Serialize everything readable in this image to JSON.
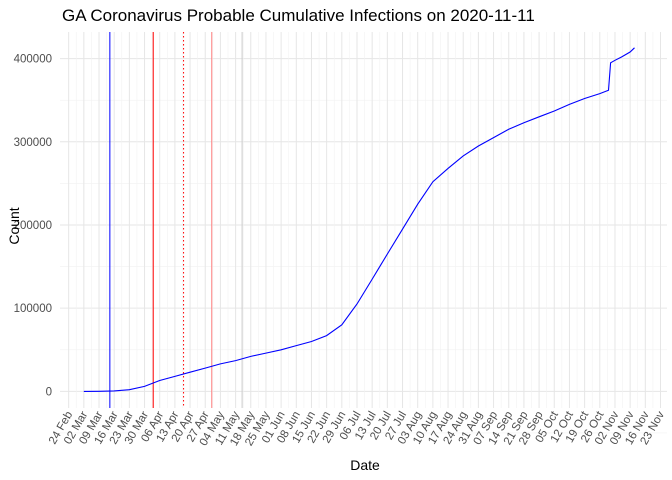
{
  "chart_data": {
    "type": "line",
    "title": "GA Coronavirus Probable Cumulative Infections on 2020-11-11",
    "xlabel": "Date",
    "ylabel": "Count",
    "xlim": [
      "2020-02-20",
      "2020-11-26"
    ],
    "ylim": [
      -20000,
      432000
    ],
    "y_ticks": [
      0,
      100000,
      200000,
      300000,
      400000
    ],
    "y_tick_labels": [
      "0",
      "100000",
      "200000",
      "300000",
      "400000"
    ],
    "x_ticks": [
      "2020-02-24",
      "2020-03-02",
      "2020-03-09",
      "2020-03-16",
      "2020-03-23",
      "2020-03-30",
      "2020-04-06",
      "2020-04-13",
      "2020-04-20",
      "2020-04-27",
      "2020-05-04",
      "2020-05-11",
      "2020-05-18",
      "2020-05-25",
      "2020-06-01",
      "2020-06-08",
      "2020-06-15",
      "2020-06-22",
      "2020-06-29",
      "2020-07-06",
      "2020-07-13",
      "2020-07-20",
      "2020-07-27",
      "2020-08-03",
      "2020-08-10",
      "2020-08-17",
      "2020-08-24",
      "2020-08-31",
      "2020-09-07",
      "2020-09-14",
      "2020-09-21",
      "2020-09-28",
      "2020-10-05",
      "2020-10-12",
      "2020-10-19",
      "2020-10-26",
      "2020-11-02",
      "2020-11-09",
      "2020-11-16",
      "2020-11-23"
    ],
    "x_tick_labels": [
      "24 Feb",
      "02 Mar",
      "09 Mar",
      "16 Mar",
      "23 Mar",
      "30 Mar",
      "06 Apr",
      "13 Apr",
      "20 Apr",
      "27 Apr",
      "04 May",
      "11 May",
      "18 May",
      "25 May",
      "01 Jun",
      "08 Jun",
      "15 Jun",
      "22 Jun",
      "29 Jun",
      "06 Jul",
      "13 Jul",
      "20 Jul",
      "27 Jul",
      "03 Aug",
      "10 Aug",
      "17 Aug",
      "24 Aug",
      "31 Aug",
      "07 Sep",
      "14 Sep",
      "21 Sep",
      "28 Sep",
      "05 Oct",
      "12 Oct",
      "19 Oct",
      "26 Oct",
      "02 Nov",
      "09 Nov",
      "16 Nov",
      "23 Nov"
    ],
    "grid": true,
    "series": [
      {
        "color": "#0000ff",
        "x": [
          "2020-03-02",
          "2020-03-09",
          "2020-03-16",
          "2020-03-23",
          "2020-03-30",
          "2020-04-06",
          "2020-04-13",
          "2020-04-20",
          "2020-04-27",
          "2020-05-04",
          "2020-05-11",
          "2020-05-18",
          "2020-05-25",
          "2020-06-01",
          "2020-06-08",
          "2020-06-15",
          "2020-06-22",
          "2020-06-29",
          "2020-07-06",
          "2020-07-13",
          "2020-07-20",
          "2020-07-27",
          "2020-08-03",
          "2020-08-10",
          "2020-08-17",
          "2020-08-24",
          "2020-08-31",
          "2020-09-07",
          "2020-09-14",
          "2020-09-21",
          "2020-09-28",
          "2020-10-05",
          "2020-10-12",
          "2020-10-19",
          "2020-10-26",
          "2020-10-30",
          "2020-10-31",
          "2020-11-02",
          "2020-11-05",
          "2020-11-09",
          "2020-11-11"
        ],
        "y": [
          0,
          100,
          500,
          2000,
          6000,
          13000,
          18000,
          23000,
          28000,
          33000,
          37000,
          42000,
          46000,
          50000,
          55000,
          60000,
          67000,
          80000,
          105000,
          135000,
          165000,
          195000,
          225000,
          252000,
          268000,
          283000,
          295000,
          305000,
          315000,
          323000,
          330000,
          337000,
          345000,
          352000,
          358000,
          362000,
          395000,
          398000,
          402000,
          408000,
          413000
        ]
      }
    ],
    "reference_lines": [
      {
        "x": "2020-03-14",
        "color": "#0000ff",
        "style": "solid"
      },
      {
        "x": "2020-04-03",
        "color": "#ff0000",
        "style": "solid"
      },
      {
        "x": "2020-04-17",
        "color": "#ff0000",
        "style": "dotted"
      },
      {
        "x": "2020-04-30",
        "color": "#ff8080",
        "style": "solid"
      },
      {
        "x": "2020-05-14",
        "color": "#cccccc",
        "style": "solid"
      }
    ]
  }
}
